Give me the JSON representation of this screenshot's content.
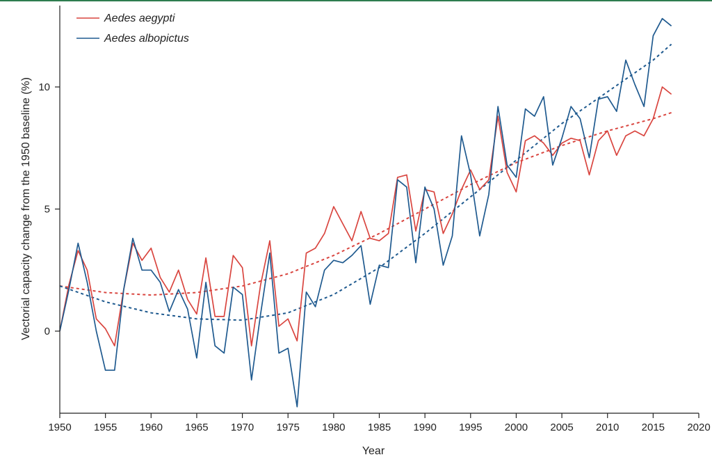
{
  "chart_data": {
    "type": "line",
    "xlabel": "Year",
    "ylabel": "Vectorial capacity change from the 1950 baseline (%)",
    "xlim": [
      1950,
      2020
    ],
    "ylim": [
      -3.2,
      13.2
    ],
    "x_ticks": [
      "1950",
      "1955",
      "1960",
      "1965",
      "1970",
      "1975",
      "1980",
      "1985",
      "1990",
      "1995",
      "2000",
      "2005",
      "2010",
      "2015",
      "2020"
    ],
    "y_ticks": [
      "0",
      "5",
      "10"
    ],
    "legend_placement": "top-left",
    "grid": false,
    "colors": {
      "aegypti": "#d9453f",
      "albopictus": "#1f5a8f"
    },
    "x": [
      1950,
      1951,
      1952,
      1953,
      1954,
      1955,
      1956,
      1957,
      1958,
      1959,
      1960,
      1961,
      1962,
      1963,
      1964,
      1965,
      1966,
      1967,
      1968,
      1969,
      1970,
      1971,
      1972,
      1973,
      1974,
      1975,
      1976,
      1977,
      1978,
      1979,
      1980,
      1981,
      1982,
      1983,
      1984,
      1985,
      1986,
      1987,
      1988,
      1989,
      1990,
      1991,
      1992,
      1993,
      1994,
      1995,
      1996,
      1997,
      1998,
      1999,
      2000,
      2001,
      2002,
      2003,
      2004,
      2005,
      2006,
      2007,
      2008,
      2009,
      2010,
      2011,
      2012,
      2013,
      2014,
      2015,
      2016,
      2017
    ],
    "series": [
      {
        "name": "Aedes aegypti",
        "color": "#d9453f",
        "values": [
          0.0,
          1.9,
          3.3,
          2.5,
          0.5,
          0.1,
          -0.6,
          1.7,
          3.6,
          2.9,
          3.4,
          2.2,
          1.6,
          2.5,
          1.3,
          0.7,
          3.0,
          0.6,
          0.6,
          3.1,
          2.6,
          -0.6,
          1.9,
          3.7,
          0.2,
          0.5,
          -0.4,
          3.2,
          3.4,
          4.0,
          5.1,
          4.4,
          3.7,
          4.9,
          3.8,
          3.7,
          4.0,
          6.3,
          6.4,
          4.1,
          5.8,
          5.7,
          4.0,
          4.8,
          5.8,
          6.6,
          5.8,
          6.2,
          8.8,
          6.5,
          5.7,
          7.8,
          8.0,
          7.7,
          7.2,
          7.7,
          7.9,
          7.8,
          6.4,
          7.8,
          8.2,
          7.2,
          8.0,
          8.2,
          8.0,
          8.7,
          10.0,
          9.7
        ]
      },
      {
        "name": "Aedes albopictus",
        "color": "#1f5a8f",
        "values": [
          0.0,
          1.7,
          3.6,
          2.0,
          0.0,
          -1.6,
          -1.6,
          1.7,
          3.8,
          2.5,
          2.5,
          2.0,
          0.8,
          1.7,
          0.9,
          -1.1,
          2.0,
          -0.6,
          -0.9,
          1.8,
          1.5,
          -2.0,
          0.7,
          3.2,
          -0.9,
          -0.7,
          -3.1,
          1.6,
          1.0,
          2.5,
          2.9,
          2.8,
          3.1,
          3.5,
          1.1,
          2.7,
          2.6,
          6.2,
          5.9,
          2.8,
          5.9,
          5.0,
          2.7,
          3.9,
          8.0,
          6.4,
          3.9,
          5.6,
          9.2,
          6.8,
          6.3,
          9.1,
          8.8,
          9.6,
          6.8,
          7.9,
          9.2,
          8.7,
          7.1,
          9.5,
          9.6,
          9.0,
          11.1,
          10.1,
          9.2,
          12.1,
          12.8,
          12.5
        ]
      }
    ],
    "trends": [
      {
        "series": "Aedes aegypti",
        "color": "#d9453f",
        "style": "dashed",
        "x": [
          1950,
          1955,
          1960,
          1965,
          1970,
          1975,
          1980,
          1985,
          1990,
          1995,
          2000,
          2005,
          2010,
          2015,
          2017
        ],
        "values": [
          1.85,
          1.58,
          1.48,
          1.58,
          1.85,
          2.35,
          3.1,
          4.0,
          5.0,
          6.0,
          6.9,
          7.6,
          8.2,
          8.7,
          8.95
        ]
      },
      {
        "series": "Aedes albopictus",
        "color": "#1f5a8f",
        "style": "dashed",
        "x": [
          1950,
          1955,
          1960,
          1965,
          1970,
          1975,
          1980,
          1985,
          1990,
          1995,
          2000,
          2005,
          2010,
          2015,
          2017
        ],
        "values": [
          1.85,
          1.2,
          0.75,
          0.5,
          0.45,
          0.75,
          1.5,
          2.6,
          4.0,
          5.5,
          7.0,
          8.5,
          9.8,
          11.1,
          11.75
        ]
      }
    ]
  }
}
